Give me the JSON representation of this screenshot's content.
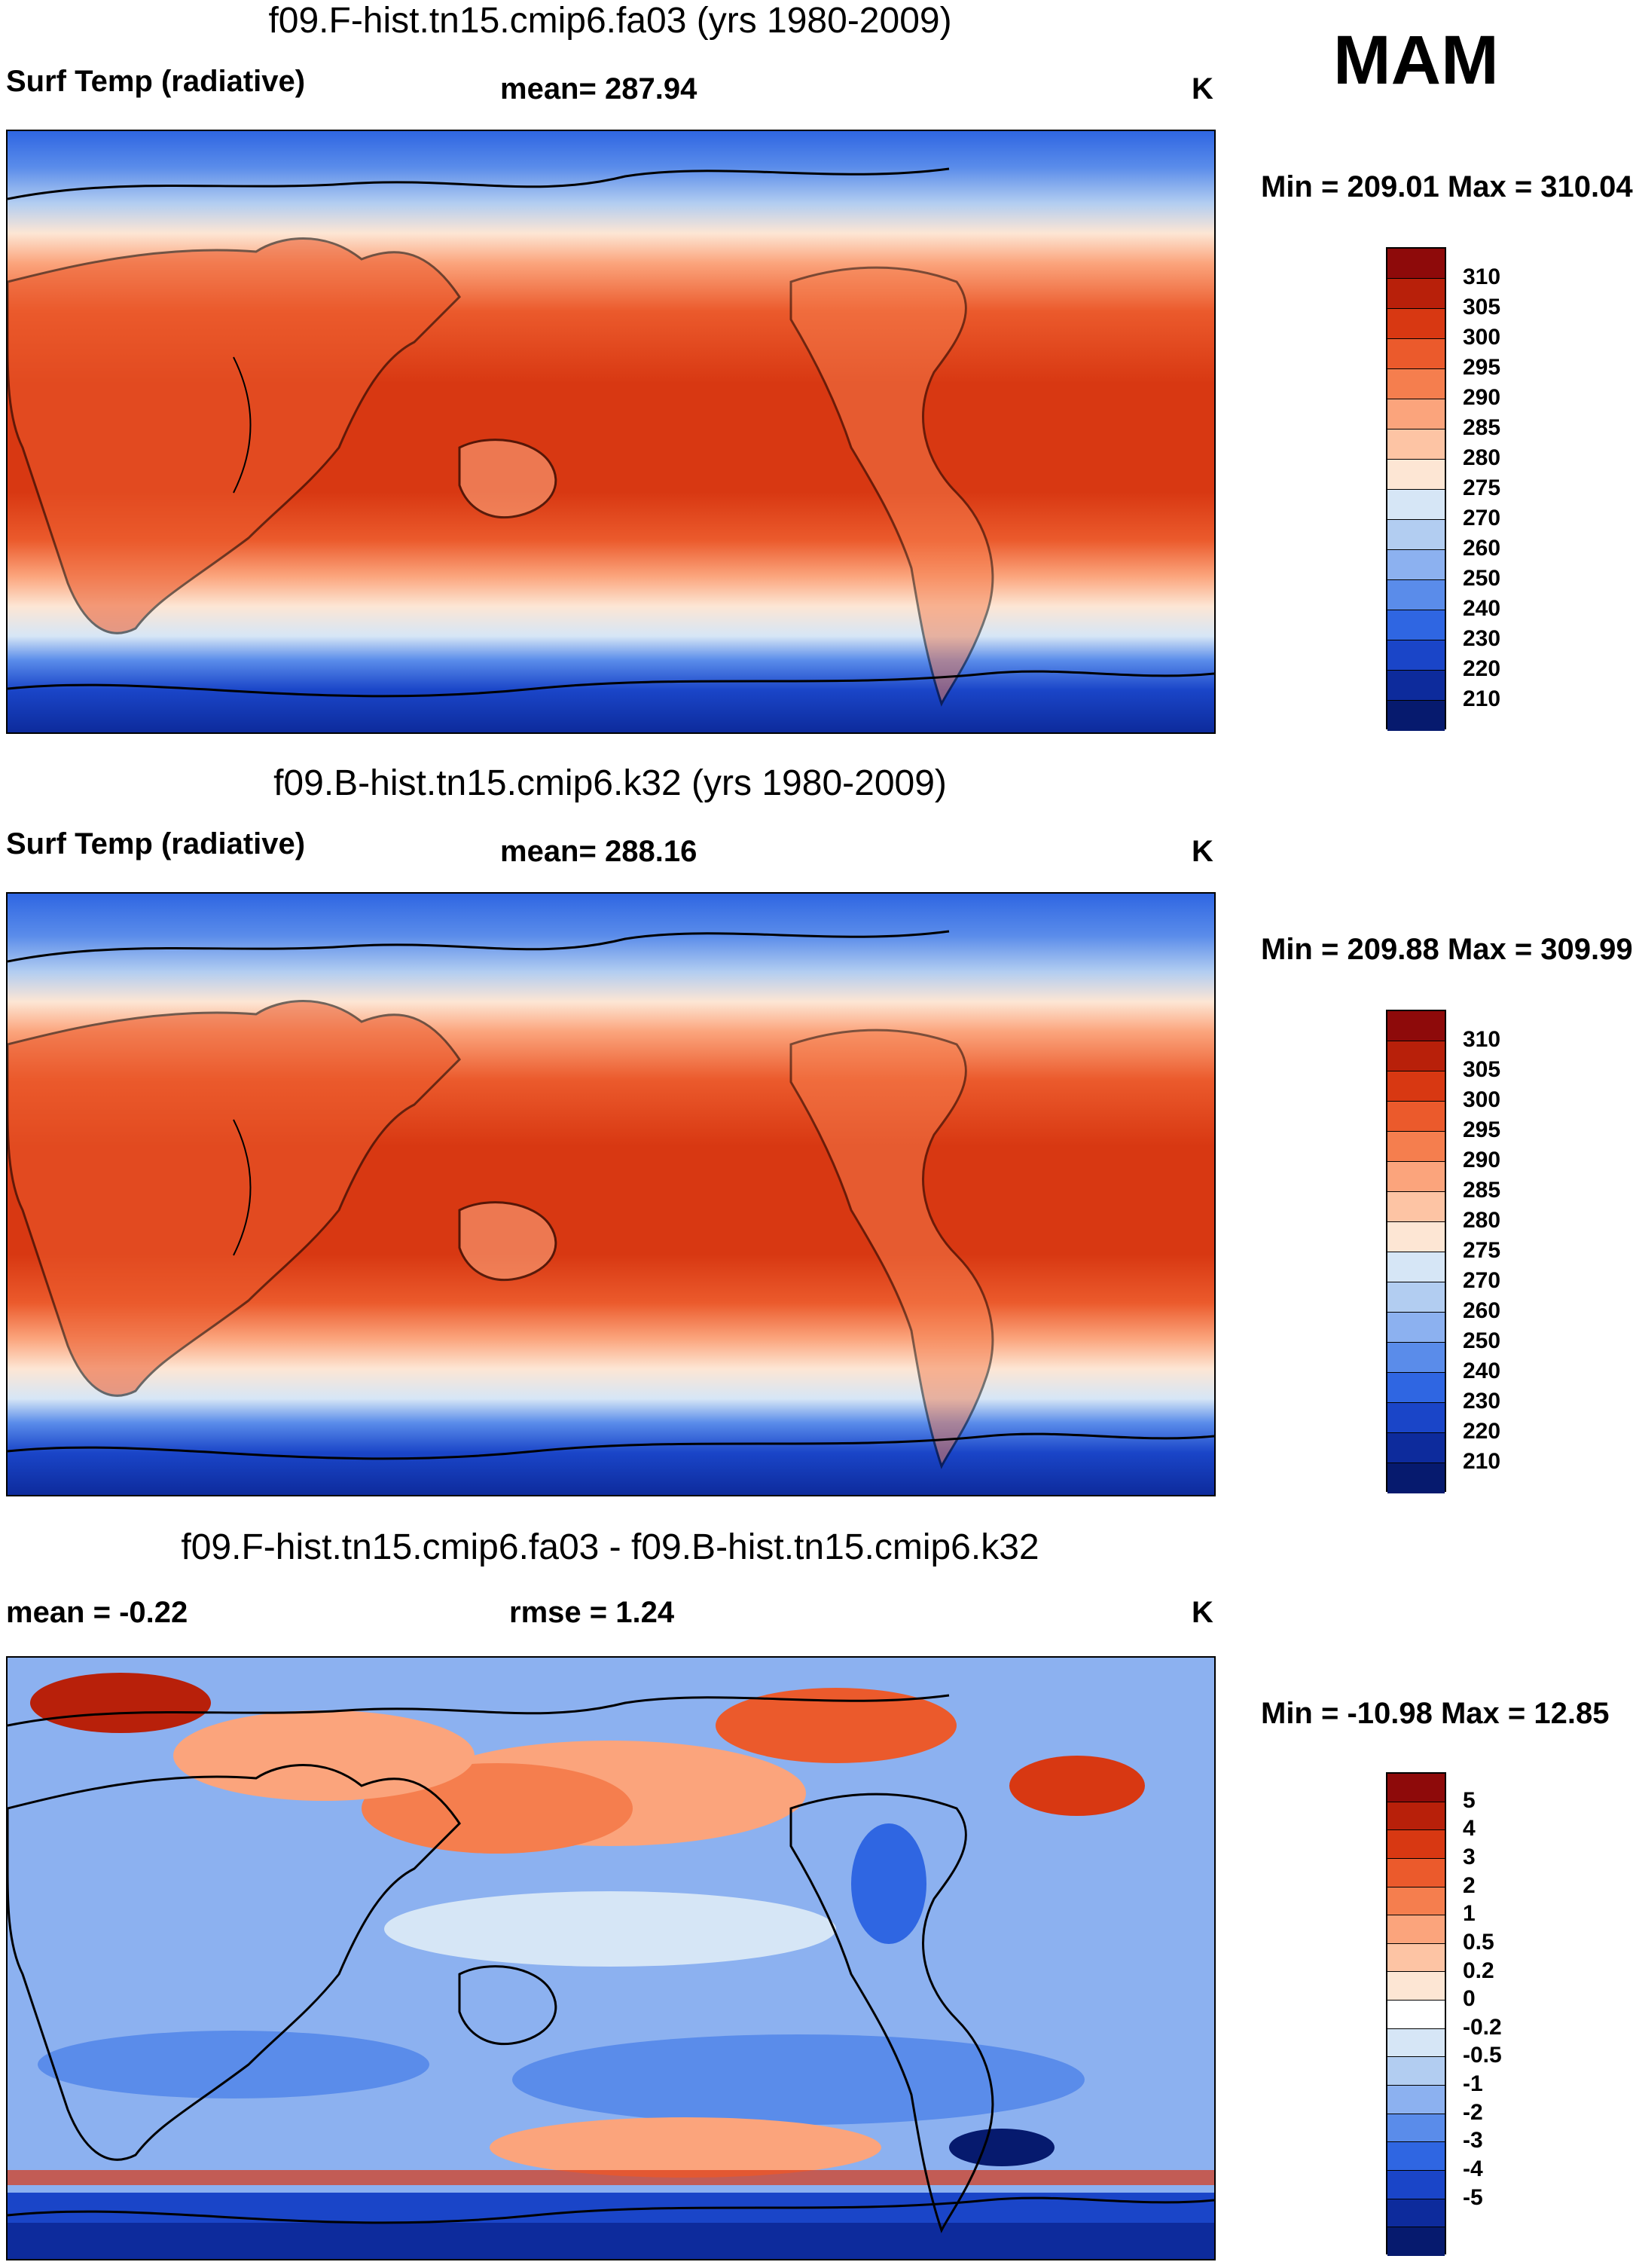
{
  "season": "MAM",
  "panels": [
    {
      "title": "f09.F-hist.tn15.cmip6.fa03 (yrs 1980-2009)",
      "left_label": "Surf Temp (radiative)",
      "mid_label": "mean= 287.94",
      "unit": "K",
      "minmax": "Min = 209.01 Max = 310.04",
      "colorbar": {
        "labels": [
          "310",
          "305",
          "300",
          "295",
          "290",
          "285",
          "280",
          "275",
          "270",
          "260",
          "250",
          "240",
          "230",
          "220",
          "210"
        ],
        "colors": [
          "#8e0a0a",
          "#b8200a",
          "#d83812",
          "#eb5a2c",
          "#f57e4e",
          "#fba47c",
          "#fdc4a4",
          "#fde6d4",
          "#d6e6f6",
          "#b2cdf1",
          "#8cb1f0",
          "#5a8cea",
          "#2f66e2",
          "#1a45c8",
          "#0d2b9c",
          "#061a6e"
        ],
        "label_indices": [
          1,
          2,
          3,
          4,
          5,
          6,
          7,
          8,
          9,
          10,
          11,
          12,
          13,
          14,
          15
        ]
      }
    },
    {
      "title": "f09.B-hist.tn15.cmip6.k32 (yrs 1980-2009)",
      "left_label": "Surf Temp (radiative)",
      "mid_label": "mean= 288.16",
      "unit": "K",
      "minmax": "Min = 209.88 Max = 309.99",
      "colorbar": {
        "labels": [
          "310",
          "305",
          "300",
          "295",
          "290",
          "285",
          "280",
          "275",
          "270",
          "260",
          "250",
          "240",
          "230",
          "220",
          "210"
        ],
        "colors": [
          "#8e0a0a",
          "#b8200a",
          "#d83812",
          "#eb5a2c",
          "#f57e4e",
          "#fba47c",
          "#fdc4a4",
          "#fde6d4",
          "#d6e6f6",
          "#b2cdf1",
          "#8cb1f0",
          "#5a8cea",
          "#2f66e2",
          "#1a45c8",
          "#0d2b9c",
          "#061a6e"
        ],
        "label_indices": [
          1,
          2,
          3,
          4,
          5,
          6,
          7,
          8,
          9,
          10,
          11,
          12,
          13,
          14,
          15
        ]
      }
    },
    {
      "title": "f09.F-hist.tn15.cmip6.fa03 - f09.B-hist.tn15.cmip6.k32",
      "left_label": "mean =  -0.22",
      "mid_label": "rmse =   1.24",
      "unit": "K",
      "minmax": "Min = -10.98 Max =  12.85",
      "colorbar": {
        "labels": [
          "5",
          "4",
          "3",
          "2",
          "1",
          "0.5",
          "0.2",
          "0",
          "-0.2",
          "-0.5",
          "-1",
          "-2",
          "-3",
          "-4",
          "-5"
        ],
        "colors": [
          "#8e0a0a",
          "#b8200a",
          "#d83812",
          "#eb5a2c",
          "#f57e4e",
          "#fba47c",
          "#fdc4a4",
          "#fde6d4",
          "#ffffff",
          "#d6e6f6",
          "#b2cdf1",
          "#8cb1f0",
          "#5a8cea",
          "#2f66e2",
          "#1a45c8",
          "#0d2b9c",
          "#061a6e"
        ],
        "label_indices": [
          1,
          2,
          3,
          4,
          5,
          6,
          7,
          8,
          9,
          10,
          11,
          12,
          13,
          14,
          15
        ]
      }
    }
  ]
}
